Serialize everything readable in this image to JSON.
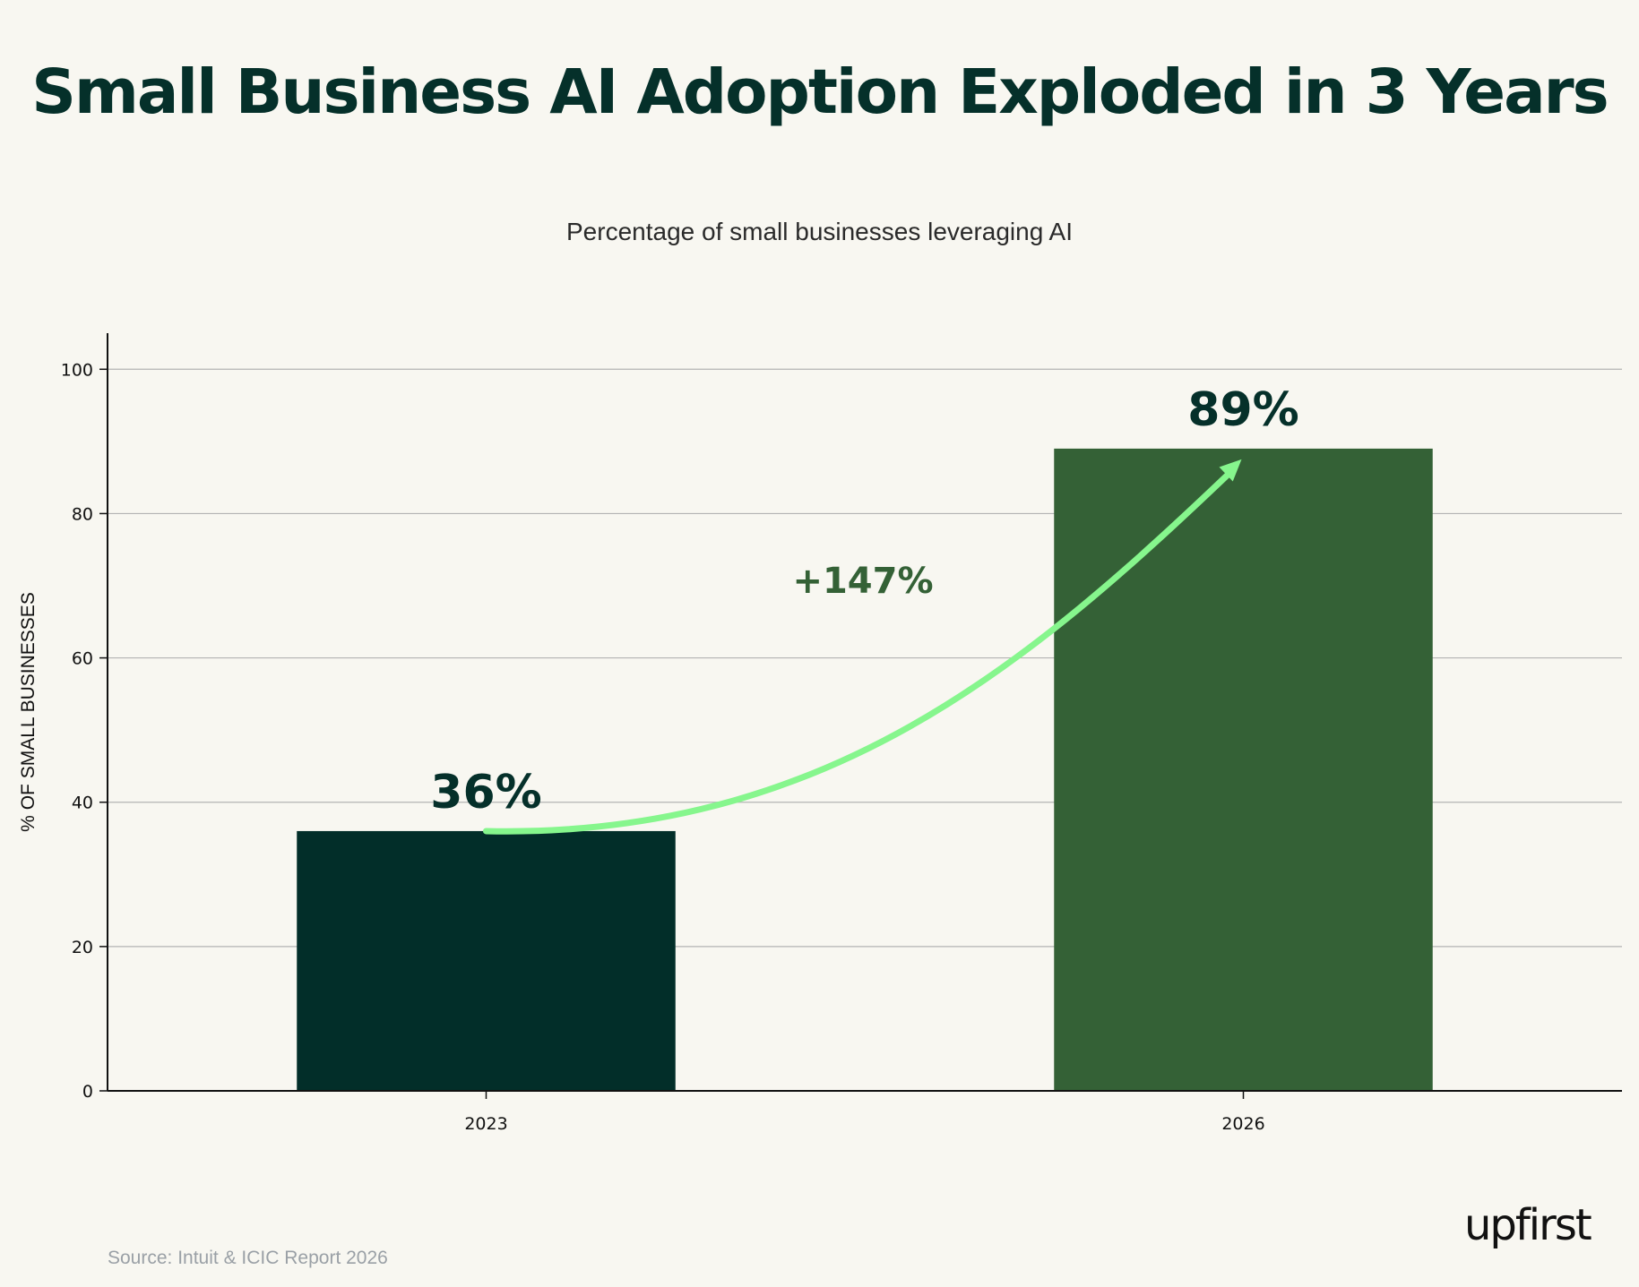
{
  "chart_data": {
    "type": "bar",
    "title": "Small Business AI Adoption Exploded in 3 Years",
    "subtitle": "Percentage of small businesses leveraging AI",
    "categories": [
      "2023",
      "2026"
    ],
    "values": [
      36,
      89
    ],
    "value_labels": [
      "36%",
      "89%"
    ],
    "bar_colors": [
      "#022e29",
      "#346136"
    ],
    "ylabel": "% OF SMALL BUSINESSES",
    "xlabel": "",
    "ylim": [
      0,
      105
    ],
    "yticks": [
      0,
      20,
      40,
      60,
      80,
      100
    ],
    "grid": true,
    "annotation": {
      "text": "+147%",
      "color": "#346136",
      "arrow_color": "#86f68d"
    }
  },
  "footer": {
    "source": "Source: Intuit & ICIC Report 2026",
    "brand": "upfirst"
  }
}
